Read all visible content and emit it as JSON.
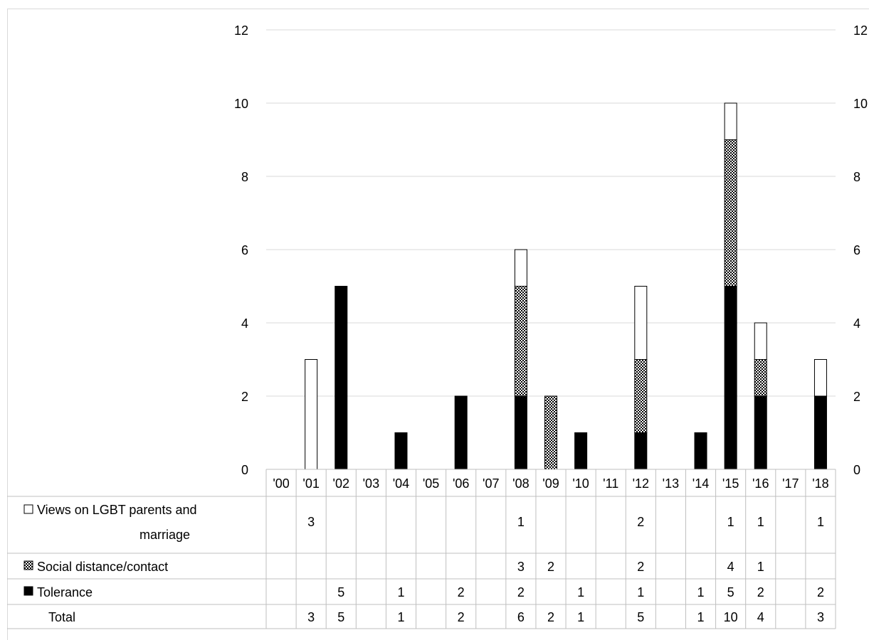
{
  "chart_data": {
    "type": "bar",
    "stacked": true,
    "categories": [
      "'00",
      "'01",
      "'02",
      "'03",
      "'04",
      "'05",
      "'06",
      "'07",
      "'08",
      "'09",
      "'10",
      "'11",
      "'12",
      "'13",
      "'14",
      "'15",
      "'16",
      "'17",
      "'18"
    ],
    "series": [
      {
        "name": "Tolerance",
        "pattern": "solid",
        "values": [
          0,
          0,
          5,
          0,
          1,
          0,
          2,
          0,
          2,
          0,
          1,
          0,
          1,
          0,
          1,
          5,
          2,
          0,
          2
        ]
      },
      {
        "name": "Social distance/contact",
        "pattern": "checker",
        "values": [
          0,
          0,
          0,
          0,
          0,
          0,
          0,
          0,
          3,
          2,
          0,
          0,
          2,
          0,
          0,
          4,
          1,
          0,
          0
        ]
      },
      {
        "name": "Views on LGBT parents and marriage",
        "pattern": "white",
        "values": [
          0,
          3,
          0,
          0,
          0,
          0,
          0,
          0,
          1,
          0,
          0,
          0,
          2,
          0,
          0,
          1,
          1,
          0,
          1
        ]
      }
    ],
    "ylim": [
      0,
      12
    ],
    "yticks": [
      "0",
      "2",
      "4",
      "6",
      "8",
      "10",
      "12"
    ],
    "grid": true,
    "data_table": {
      "rows": [
        {
          "label_lines": [
            "Views on LGBT parents and",
            "marriage"
          ],
          "icon": "white",
          "cells": [
            "",
            "3",
            "",
            "",
            "",
            "",
            "",
            "",
            "1",
            "",
            "",
            "",
            "2",
            "",
            "",
            "1",
            "1",
            "",
            "1"
          ]
        },
        {
          "label_lines": [
            "Social distance/contact"
          ],
          "icon": "checker",
          "cells": [
            "",
            "",
            "",
            "",
            "",
            "",
            "",
            "",
            "3",
            "2",
            "",
            "",
            "2",
            "",
            "",
            "4",
            "1",
            "",
            ""
          ]
        },
        {
          "label_lines": [
            "Tolerance"
          ],
          "icon": "solid",
          "cells": [
            "",
            "",
            "5",
            "",
            "1",
            "",
            "2",
            "",
            "2",
            "",
            "1",
            "",
            "1",
            "",
            "1",
            "5",
            "2",
            "",
            "2"
          ]
        },
        {
          "label_lines": [
            "Total"
          ],
          "icon": "none",
          "cells": [
            "",
            "3",
            "5",
            "",
            "1",
            "",
            "2",
            "",
            "6",
            "2",
            "1",
            "",
            "5",
            "",
            "1",
            "10",
            "4",
            "",
            "3"
          ]
        }
      ]
    },
    "colors": {
      "grid": "#d9d9d9",
      "bar": "#000000",
      "fill_white": "#ffffff"
    }
  }
}
